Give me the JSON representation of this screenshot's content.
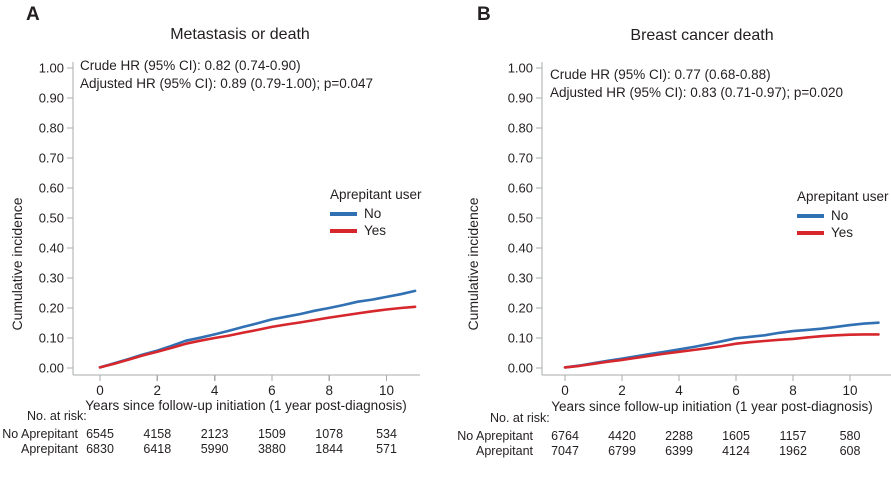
{
  "colors": {
    "no_line": "#3070B3",
    "yes_line": "#D6272D",
    "axis": "#A9ACAE",
    "text": "#231F20"
  },
  "chart_data": [
    {
      "type": "line",
      "panel_label": "A",
      "title": "Metastasis or death",
      "annotations": [
        "Crude HR (95% CI): 0.82 (0.74-0.90)",
        "Adjusted HR (95% CI): 0.89 (0.79-1.00); p=0.047"
      ],
      "xlabel": "Years since follow-up initiation (1 year post-diagnosis)",
      "ylabel": "Cumulative incidence",
      "ylim": [
        0,
        1.0
      ],
      "xlim": [
        0,
        11.1
      ],
      "y_ticks": [
        "0.00",
        "0.10",
        "0.20",
        "0.30",
        "0.40",
        "0.50",
        "0.60",
        "0.70",
        "0.80",
        "0.90",
        "1.00"
      ],
      "x_ticks": [
        0,
        2,
        4,
        6,
        8,
        10
      ],
      "legend": {
        "title": "Aprepitant user",
        "position": "right-middle"
      },
      "grid": false,
      "x": [
        0,
        0.5,
        1,
        1.5,
        2,
        2.5,
        3,
        3.5,
        4,
        4.5,
        5,
        5.5,
        6,
        6.5,
        7,
        7.5,
        8,
        8.5,
        9,
        9.5,
        10,
        10.5,
        11
      ],
      "series": [
        {
          "name": "No",
          "color": "#3070B3",
          "values": [
            0.002,
            0.016,
            0.03,
            0.045,
            0.058,
            0.074,
            0.091,
            0.101,
            0.112,
            0.124,
            0.137,
            0.149,
            0.162,
            0.171,
            0.18,
            0.191,
            0.2,
            0.21,
            0.221,
            0.228,
            0.237,
            0.246,
            0.257
          ]
        },
        {
          "name": "Yes",
          "color": "#D6272D",
          "values": [
            0.002,
            0.014,
            0.028,
            0.042,
            0.054,
            0.067,
            0.081,
            0.091,
            0.1,
            0.108,
            0.118,
            0.127,
            0.137,
            0.145,
            0.152,
            0.16,
            0.168,
            0.175,
            0.182,
            0.189,
            0.195,
            0.2,
            0.204
          ]
        }
      ],
      "risk_table": {
        "header": "No. at risk:",
        "rows": [
          {
            "label": "No Aprepitant",
            "values": [
              6545,
              4158,
              2123,
              1509,
              1078,
              534
            ]
          },
          {
            "label": "Aprepitant",
            "values": [
              6830,
              6418,
              5990,
              3880,
              1844,
              571
            ]
          }
        ]
      }
    },
    {
      "type": "line",
      "panel_label": "B",
      "title": "Breast cancer death",
      "annotations": [
        "Crude HR (95% CI): 0.77 (0.68-0.88)",
        "Adjusted HR (95% CI): 0.83 (0.71-0.97); p=0.020"
      ],
      "xlabel": "Years since follow-up initiation (1 year post-diagnosis)",
      "ylabel": "Cumulative incidence",
      "ylim": [
        0,
        1.0
      ],
      "xlim": [
        0,
        11.1
      ],
      "y_ticks": [
        "0.00",
        "0.10",
        "0.20",
        "0.30",
        "0.40",
        "0.50",
        "0.60",
        "0.70",
        "0.80",
        "0.90",
        "1.00"
      ],
      "x_ticks": [
        0,
        2,
        4,
        6,
        8,
        10
      ],
      "legend": {
        "title": "Aprepitant user",
        "position": "right-middle"
      },
      "grid": false,
      "x": [
        0,
        0.5,
        1,
        1.5,
        2,
        2.5,
        3,
        3.5,
        4,
        4.5,
        5,
        5.5,
        6,
        6.5,
        7,
        7.5,
        8,
        8.5,
        9,
        9.5,
        10,
        10.5,
        11
      ],
      "series": [
        {
          "name": "No",
          "color": "#3070B3",
          "values": [
            0.002,
            0.008,
            0.016,
            0.024,
            0.031,
            0.039,
            0.047,
            0.054,
            0.062,
            0.07,
            0.079,
            0.089,
            0.099,
            0.104,
            0.109,
            0.117,
            0.123,
            0.127,
            0.131,
            0.137,
            0.143,
            0.148,
            0.151
          ]
        },
        {
          "name": "Yes",
          "color": "#D6272D",
          "values": [
            0.002,
            0.007,
            0.014,
            0.021,
            0.027,
            0.034,
            0.041,
            0.048,
            0.054,
            0.06,
            0.066,
            0.073,
            0.081,
            0.086,
            0.09,
            0.094,
            0.097,
            0.102,
            0.106,
            0.109,
            0.111,
            0.112,
            0.112
          ]
        }
      ],
      "risk_table": {
        "header": "No. at risk:",
        "rows": [
          {
            "label": "No Aprepitant",
            "values": [
              6764,
              4420,
              2288,
              1605,
              1157,
              580
            ]
          },
          {
            "label": "Aprepitant",
            "values": [
              7047,
              6799,
              6399,
              4124,
              1962,
              608
            ]
          }
        ]
      }
    }
  ]
}
